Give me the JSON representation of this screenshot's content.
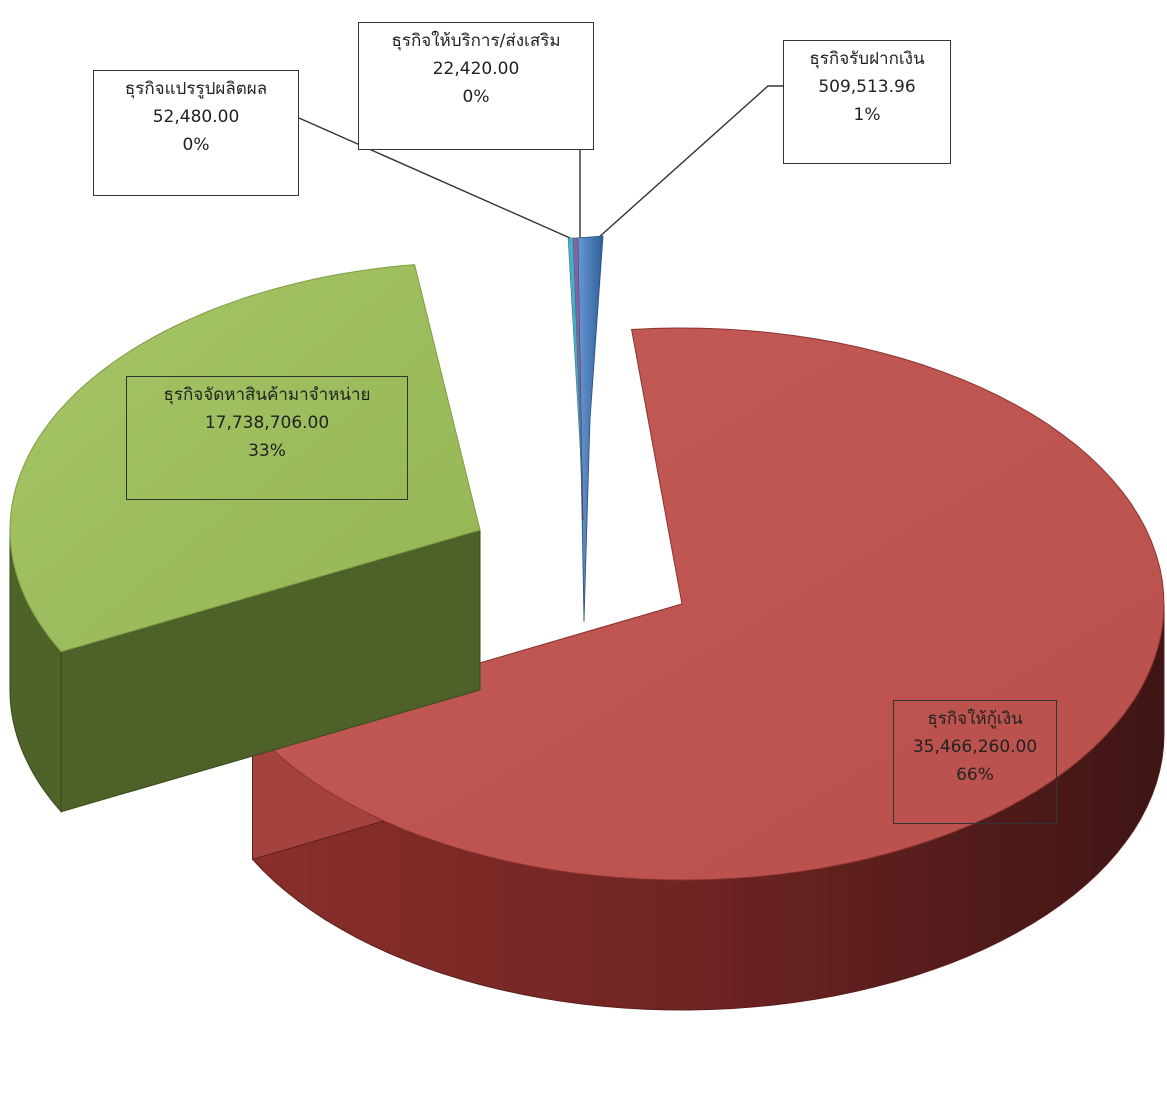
{
  "chart_data": {
    "type": "pie",
    "variant": "3d-exploded",
    "title": "",
    "legend": "none",
    "slices": [
      {
        "name": "ธุรกิจให้กู้เงิน",
        "value": 35466260.0,
        "value_label": "35,466,260.00",
        "percent_label": "66%",
        "color": "#c0504d",
        "side_color": "#6b2422"
      },
      {
        "name": "ธุรกิจจัดหาสินค้ามาจำหน่าย",
        "value": 17738706.0,
        "value_label": "17,738,706.00",
        "percent_label": "33%",
        "color": "#9bbb59",
        "side_color": "#4f6228"
      },
      {
        "name": "ธุรกิจแปรรูปผลิตผล",
        "value": 52480.0,
        "value_label": "52,480.00",
        "percent_label": "0%",
        "color": "#4bacc6",
        "side_color": "#2c6f80"
      },
      {
        "name": "ธุรกิจให้บริการ/ส่งเสริม",
        "value": 22420.0,
        "value_label": "22,420.00",
        "percent_label": "0%",
        "color": "#8064a2",
        "side_color": "#4a3a60"
      },
      {
        "name": "ธุรกิจรับฝากเงิน",
        "value": 509513.96,
        "value_label": "509,513.96",
        "percent_label": "1%",
        "color": "#4f81bd",
        "side_color": "#2c4d76"
      }
    ]
  }
}
